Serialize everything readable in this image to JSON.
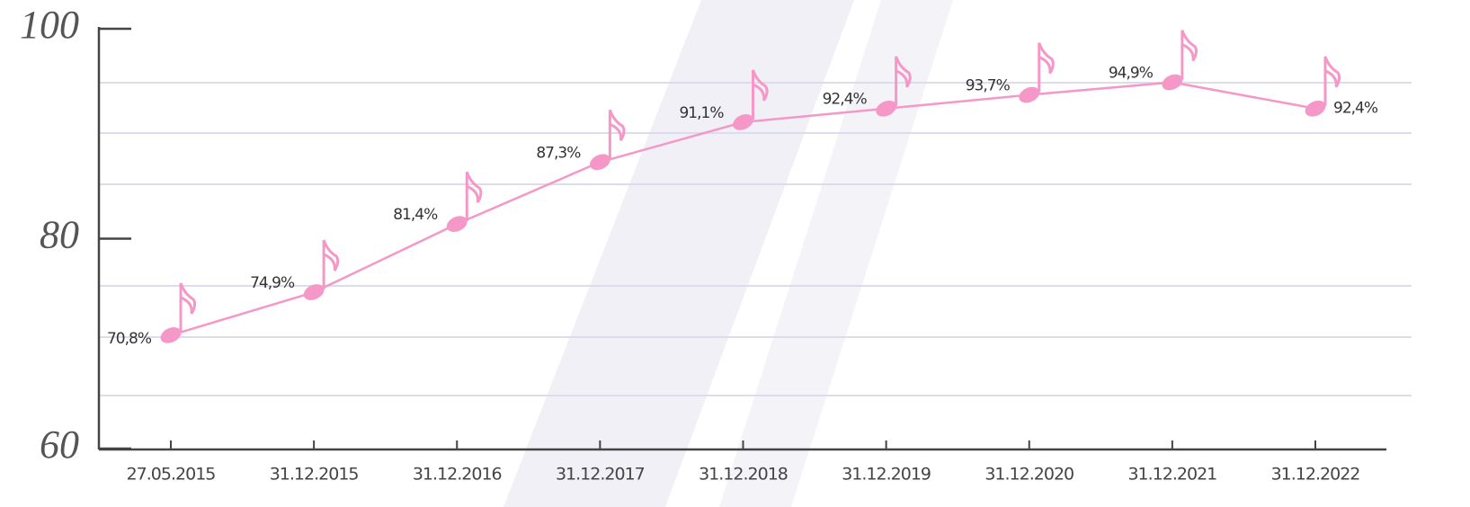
{
  "chart_data": {
    "type": "line",
    "categories": [
      "27.05.2015",
      "31.12.2015",
      "31.12.2016",
      "31.12.2017",
      "31.12.2018",
      "31.12.2019",
      "31.12.2020",
      "31.12.2021",
      "31.12.2022"
    ],
    "values": [
      70.8,
      74.9,
      81.4,
      87.3,
      91.1,
      92.4,
      93.7,
      94.9,
      92.4
    ],
    "value_labels": [
      "70,8%",
      "74,9%",
      "81,4%",
      "87,3%",
      "91,1%",
      "92,4%",
      "93,7%",
      "94,9%",
      "92,4%"
    ],
    "color": "#f598c8",
    "ylim": [
      60,
      100
    ],
    "yticks": [
      60,
      80,
      100
    ]
  }
}
